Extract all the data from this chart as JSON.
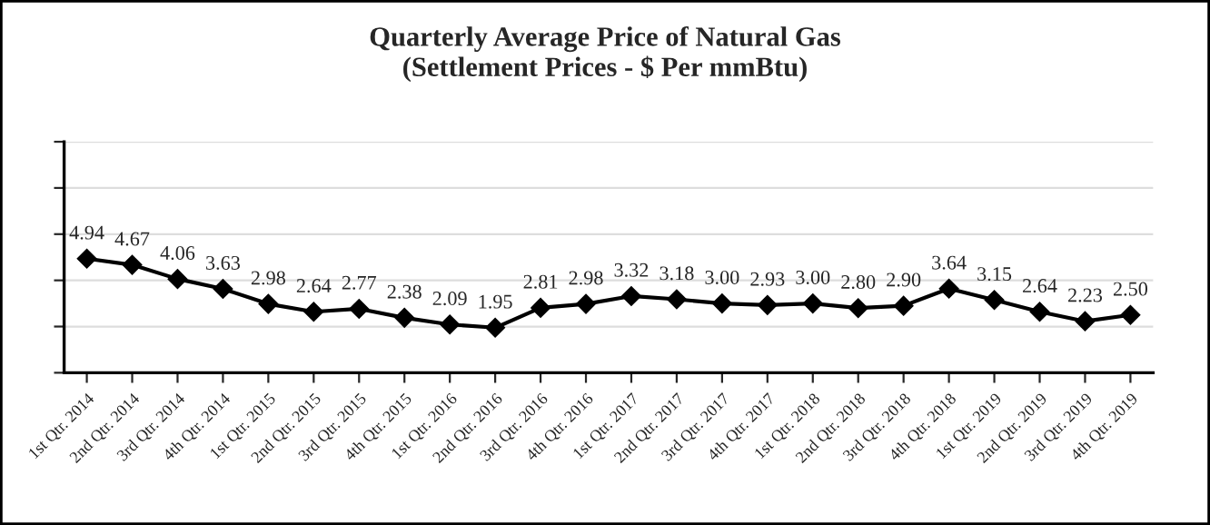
{
  "chart_data": {
    "type": "line",
    "title": "Quarterly Average Price of Natural Gas\n(Settlement Prices - $ Per mmBtu)",
    "categories": [
      "1st Qtr. 2014",
      "2nd Qtr. 2014",
      "3rd Qtr. 2014",
      "4th Qtr. 2014",
      "1st Qtr. 2015",
      "2nd Qtr. 2015",
      "3rd Qtr. 2015",
      "4th Qtr. 2015",
      "1st Qtr. 2016",
      "2nd Qtr. 2016",
      "3rd Qtr. 2016",
      "4th Qtr. 2016",
      "1st Qtr. 2017",
      "2nd Qtr. 2017",
      "3rd Qtr. 2017",
      "4th Qtr. 2017",
      "1st Qtr. 2018",
      "2nd Qtr. 2018",
      "3rd Qtr. 2018",
      "4th Qtr. 2018",
      "1st Qtr. 2019",
      "2nd Qtr. 2019",
      "3rd Qtr. 2019",
      "4th Qtr. 2019"
    ],
    "series": [
      {
        "color": "#000000",
        "values": [
          4.94,
          4.67,
          4.06,
          3.63,
          2.98,
          2.64,
          2.77,
          2.38,
          2.09,
          1.95,
          2.81,
          2.98,
          3.32,
          3.18,
          3.0,
          2.93,
          3.0,
          2.8,
          2.9,
          3.64,
          3.15,
          2.64,
          2.23,
          2.5
        ],
        "value_labels": [
          "4.94",
          "4.67",
          "4.06",
          "3.63",
          "2.98",
          "2.64",
          "2.77",
          "2.38",
          "2.09",
          "1.95",
          "2.81",
          "2.98",
          "3.32",
          "3.18",
          "3.00",
          "2.93",
          "3.00",
          "2.80",
          "2.90",
          "3.64",
          "3.15",
          "2.64",
          "2.23",
          "2.50"
        ]
      }
    ],
    "ylim": [
      0,
      10
    ],
    "yticks": [
      {
        "value": 0,
        "label": null
      },
      {
        "value": 2,
        "label": null
      },
      {
        "value": 4,
        "label": null
      },
      {
        "value": 6,
        "label": null
      },
      {
        "value": 8,
        "label": null
      },
      {
        "value": 10,
        "label": null
      }
    ],
    "grid": "y",
    "marker": "diamond",
    "line_style": "solid",
    "tick_labels": "x"
  }
}
